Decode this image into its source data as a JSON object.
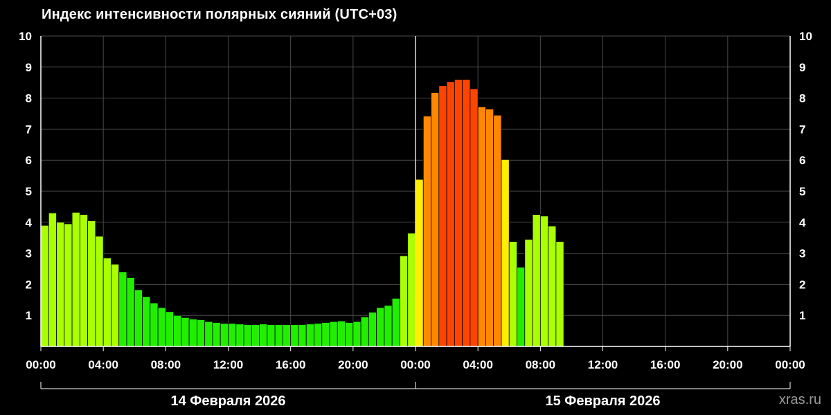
{
  "title": "Индекс интенсивности полярных сияний (UTC+03)",
  "watermark": "xras.ru",
  "chart_data": {
    "type": "bar",
    "title": "Индекс интенсивности полярных сияний (UTC+03)",
    "xlabel": "",
    "ylabel": "",
    "ylim": [
      0,
      10
    ],
    "yticks": [
      "1",
      "2",
      "3",
      "4",
      "5",
      "6",
      "7",
      "8",
      "9",
      "10"
    ],
    "xticks": [
      "00:00",
      "04:00",
      "08:00",
      "12:00",
      "16:00",
      "20:00",
      "00:00",
      "04:00",
      "08:00",
      "12:00",
      "16:00",
      "20:00",
      "00:00"
    ],
    "x_range_hours": [
      0,
      48
    ],
    "bar_width_hours": 0.5,
    "grid": true,
    "day_labels": [
      "14 Февраля 2026",
      "15 Февраля 2026"
    ],
    "colors": {
      "low": "#22ee00",
      "mid": "#aaff00",
      "high": "#ffee00",
      "orange": "#ff8800",
      "red": "#ff4400",
      "grid": "#4a4a4a",
      "axis": "#ffffff"
    },
    "series": [
      {
        "values": [
          3.9,
          4.3,
          4.0,
          3.95,
          4.32,
          4.25,
          4.05,
          3.55,
          2.85,
          2.65,
          2.4,
          2.22,
          1.82,
          1.6,
          1.4,
          1.25,
          1.12,
          1.0,
          0.93,
          0.88,
          0.86,
          0.8,
          0.77,
          0.74,
          0.74,
          0.72,
          0.7,
          0.7,
          0.72,
          0.7,
          0.7,
          0.7,
          0.7,
          0.7,
          0.72,
          0.74,
          0.77,
          0.8,
          0.82,
          0.77,
          0.8,
          0.95,
          1.1,
          1.25,
          1.32,
          1.55,
          2.92,
          3.65,
          5.38,
          7.42,
          8.18,
          8.4,
          8.53,
          8.6,
          8.6,
          8.3,
          7.72,
          7.65,
          7.45,
          6.02,
          3.38,
          2.55,
          3.45,
          4.25,
          4.2,
          3.88,
          3.38
        ]
      }
    ]
  }
}
